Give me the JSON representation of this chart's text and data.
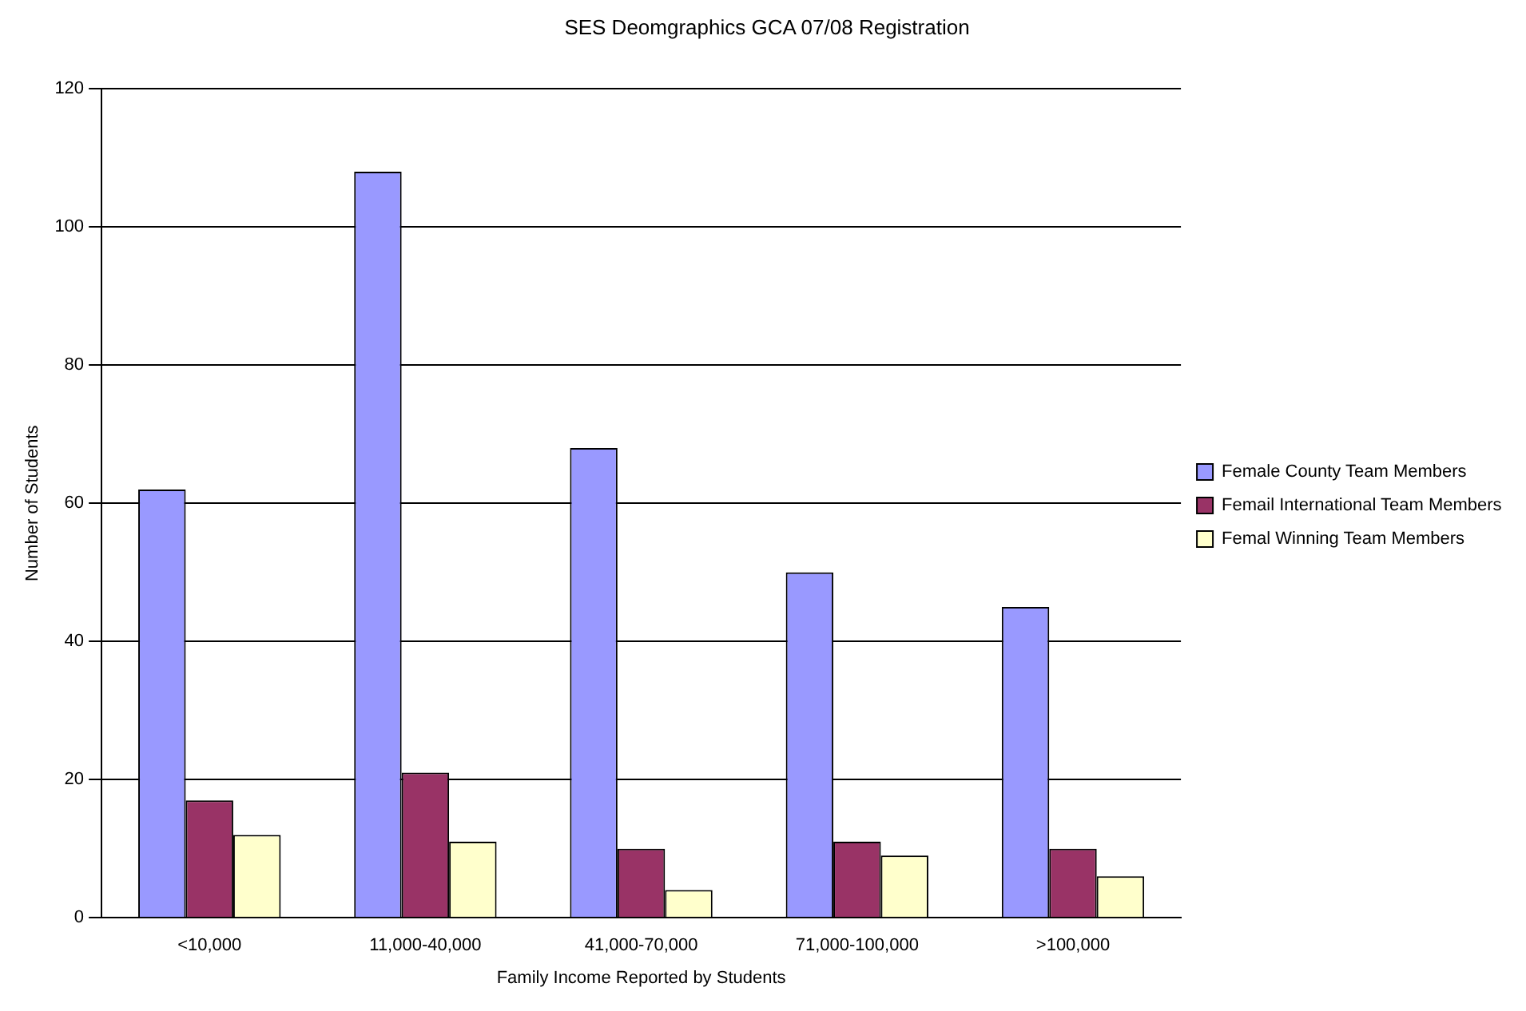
{
  "chart_data": {
    "type": "bar",
    "title": "SES Deomgraphics GCA 07/08 Registration",
    "xlabel": "Family Income Reported by Students",
    "ylabel": "Number of Students",
    "categories": [
      "<10,000",
      "11,000-40,000",
      "41,000-70,000",
      "71,000-100,000",
      ">100,000"
    ],
    "series": [
      {
        "name": "Female County Team Members",
        "color": "#9999ff",
        "values": [
          62,
          108,
          68,
          50,
          45
        ]
      },
      {
        "name": "Femail International Team Members",
        "color": "#993366",
        "values": [
          17,
          21,
          10,
          11,
          10
        ]
      },
      {
        "name": "Femal Winning Team Members",
        "color": "#ffffcc",
        "values": [
          12,
          11,
          4,
          9,
          6
        ]
      }
    ],
    "ylim": [
      0,
      120
    ],
    "yticks": [
      0,
      20,
      40,
      60,
      80,
      100,
      120
    ],
    "grid": "y",
    "legend": "right"
  }
}
